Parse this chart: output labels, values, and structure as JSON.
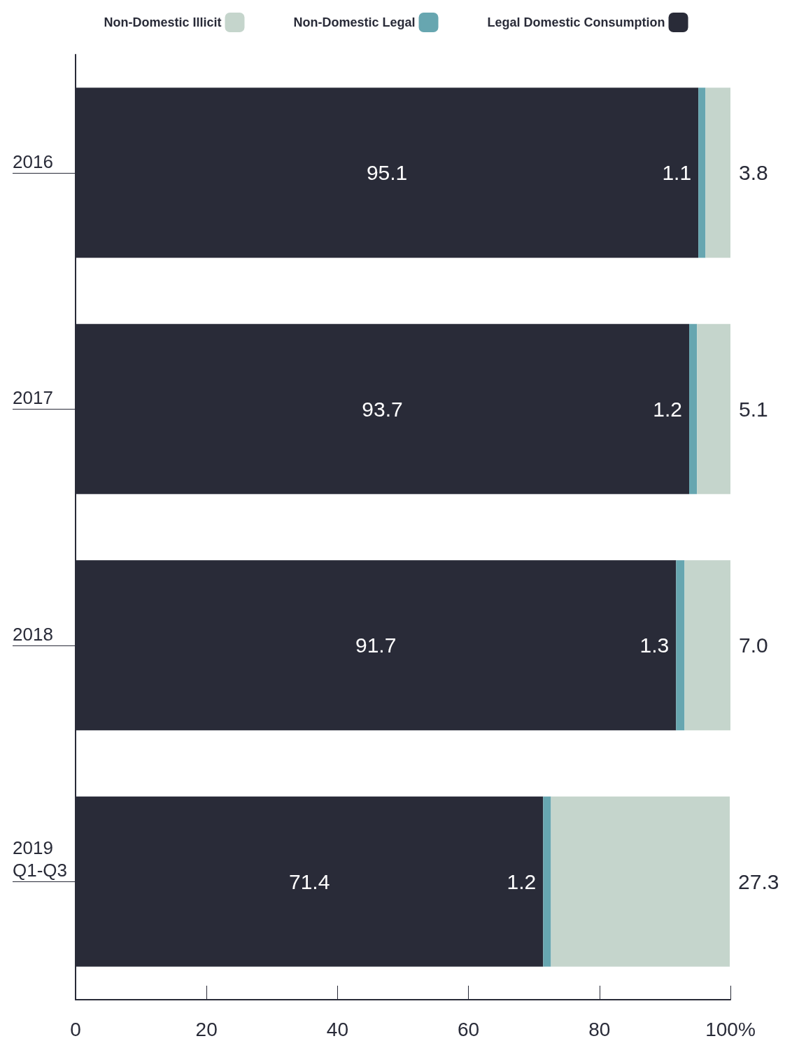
{
  "chart_data": {
    "type": "bar",
    "orientation": "horizontal",
    "stacked": true,
    "categories": [
      "2016",
      "2017",
      "2018",
      "2019\nQ1-Q3"
    ],
    "series": [
      {
        "name": "Legal Domestic Consumption",
        "color": "#292b38",
        "values": [
          95.1,
          93.7,
          91.7,
          71.4
        ],
        "value_labels": [
          "95.1",
          "93.7",
          "91.7",
          "71.4"
        ]
      },
      {
        "name": "Non-Domestic Legal",
        "color": "#67a6b0",
        "values": [
          1.1,
          1.2,
          1.3,
          1.2
        ],
        "value_labels": [
          "1.1",
          "1.2",
          "1.3",
          "1.2"
        ]
      },
      {
        "name": "Non-Domestic Illicit",
        "color": "#c5d5cc",
        "values": [
          3.8,
          5.1,
          7.0,
          27.3
        ],
        "value_labels": [
          "3.8",
          "5.1",
          "7.0",
          "27.3"
        ]
      }
    ],
    "xlim": [
      0,
      100
    ],
    "xticks": [
      0,
      20,
      40,
      60,
      80,
      {
        "value": 100,
        "label": "100%"
      }
    ],
    "grid": false,
    "legend": "top"
  }
}
